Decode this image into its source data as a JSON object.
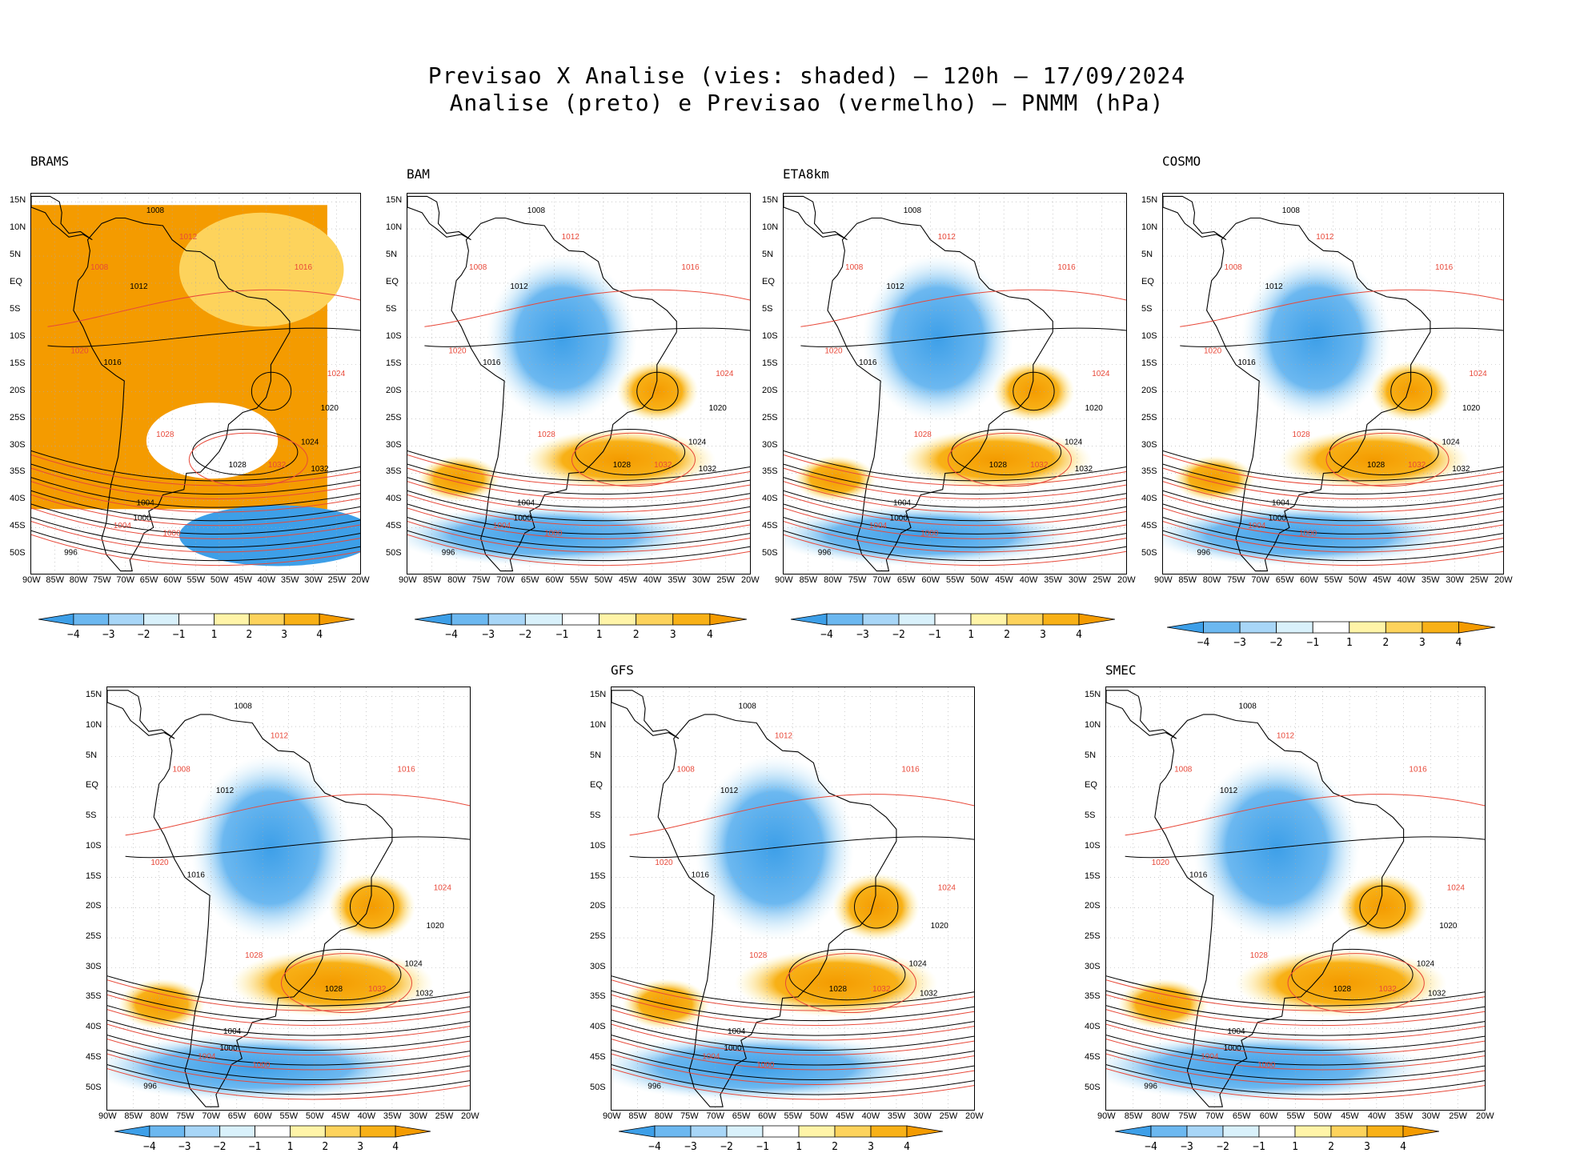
{
  "header": {
    "title_line1": "Previsao X Analise (vies: shaded) — 120h — 17/09/2024",
    "title_line2": "Analise (preto) e Previsao (vermelho) — PNMM (hPa)"
  },
  "panels": [
    {
      "name": "brams",
      "title": "BRAMS",
      "bold": true
    },
    {
      "name": "bam",
      "title": "BAM",
      "bold": false
    },
    {
      "name": "eta8km",
      "title": "ETA8km",
      "bold": false
    },
    {
      "name": "cosmo",
      "title": "COSMO",
      "bold": false
    },
    {
      "name": "unlabeled",
      "title": "",
      "bold": false
    },
    {
      "name": "gfs",
      "title": "GFS",
      "bold": false
    },
    {
      "name": "smec",
      "title": "SMEC",
      "bold": false
    }
  ],
  "lat_labels": [
    "15N",
    "10N",
    "5N",
    "EQ",
    "5S",
    "10S",
    "15S",
    "20S",
    "25S",
    "30S",
    "35S",
    "40S",
    "45S",
    "50S"
  ],
  "lon_labels": [
    "90W",
    "85W",
    "80W",
    "75W",
    "70W",
    "65W",
    "60W",
    "55W",
    "50W",
    "45W",
    "40W",
    "35W",
    "30W",
    "25W",
    "20W"
  ],
  "colorbar": {
    "labels": [
      "−4",
      "−3",
      "−2",
      "−1",
      "1",
      "2",
      "3",
      "4"
    ],
    "colors": [
      "#3d9fe8",
      "#6cb8f0",
      "#a8d6f7",
      "#d9f1fb",
      "#ffffff",
      "#fff4a8",
      "#fdd35c",
      "#f8b117",
      "#f49b00"
    ]
  },
  "isobar_labels_black": [
    "1008",
    "1012",
    "1016",
    "1020",
    "1024",
    "1028",
    "1032",
    "1004",
    "1000",
    "996"
  ],
  "isobar_labels_red": [
    "1008",
    "1012",
    "1016",
    "1020",
    "1024",
    "1028",
    "1032",
    "1004",
    "1000"
  ]
}
